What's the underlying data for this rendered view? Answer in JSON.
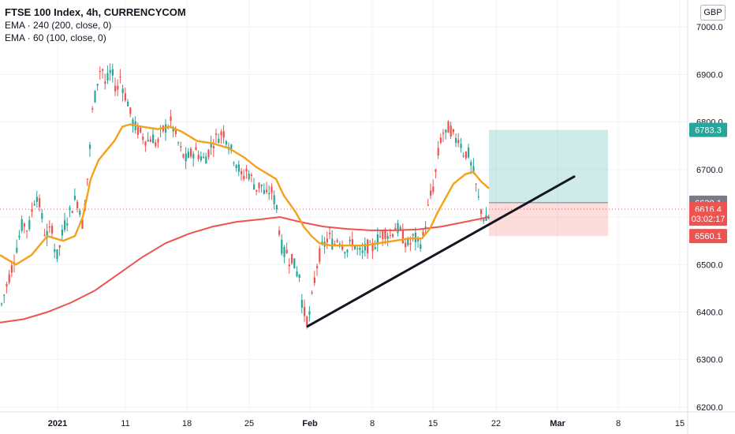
{
  "chart_data": {
    "type": "candlestick",
    "title": "FTSE 100 Index, 4h, CURRENCYCOM",
    "currency": "GBP",
    "indicators": [
      {
        "label": "EMA · 240 (200, close, 0)",
        "color": "#ef5350"
      },
      {
        "label": "EMA · 60 (100, close, 0)",
        "color": "#f5a11a"
      }
    ],
    "x_ticks": [
      "2021",
      "11",
      "18",
      "25",
      "Feb",
      "8",
      "15",
      "22",
      "Mar",
      "8",
      "15"
    ],
    "y_ticks": [
      "7000.0",
      "6900.0",
      "6800.0",
      "6700.0",
      "6600.0",
      "6500.0",
      "6400.0",
      "6300.0",
      "6200.0"
    ],
    "ylim": [
      6190,
      7040
    ],
    "price_path": [
      [
        0,
        6410
      ],
      [
        8,
        6460
      ],
      [
        15,
        6500
      ],
      [
        22,
        6550
      ],
      [
        28,
        6590
      ],
      [
        35,
        6570
      ],
      [
        40,
        6620
      ],
      [
        45,
        6650
      ],
      [
        50,
        6620
      ],
      [
        55,
        6570
      ],
      [
        60,
        6560
      ],
      [
        65,
        6580
      ],
      [
        70,
        6510
      ],
      [
        75,
        6540
      ],
      [
        80,
        6580
      ],
      [
        85,
        6600
      ],
      [
        90,
        6620
      ],
      [
        95,
        6640
      ],
      [
        100,
        6620
      ],
      [
        104,
        6580
      ],
      [
        108,
        6650
      ],
      [
        112,
        6720
      ],
      [
        116,
        6820
      ],
      [
        120,
        6860
      ],
      [
        124,
        6900
      ],
      [
        128,
        6920
      ],
      [
        132,
        6880
      ],
      [
        136,
        6890
      ],
      [
        140,
        6910
      ],
      [
        144,
        6880
      ],
      [
        148,
        6870
      ],
      [
        152,
        6900
      ],
      [
        156,
        6860
      ],
      [
        160,
        6850
      ],
      [
        165,
        6810
      ],
      [
        170,
        6790
      ],
      [
        175,
        6780
      ],
      [
        180,
        6770
      ],
      [
        186,
        6760
      ],
      [
        192,
        6770
      ],
      [
        198,
        6750
      ],
      [
        204,
        6780
      ],
      [
        210,
        6790
      ],
      [
        216,
        6800
      ],
      [
        222,
        6770
      ],
      [
        228,
        6740
      ],
      [
        234,
        6720
      ],
      [
        240,
        6730
      ],
      [
        246,
        6740
      ],
      [
        252,
        6730
      ],
      [
        258,
        6720
      ],
      [
        264,
        6740
      ],
      [
        270,
        6760
      ],
      [
        276,
        6770
      ],
      [
        282,
        6780
      ],
      [
        288,
        6760
      ],
      [
        294,
        6730
      ],
      [
        300,
        6710
      ],
      [
        306,
        6680
      ],
      [
        312,
        6700
      ],
      [
        318,
        6680
      ],
      [
        324,
        6660
      ],
      [
        330,
        6670
      ],
      [
        336,
        6640
      ],
      [
        342,
        6660
      ],
      [
        346,
        6640
      ],
      [
        350,
        6620
      ],
      [
        354,
        6560
      ],
      [
        358,
        6520
      ],
      [
        362,
        6530
      ],
      [
        366,
        6510
      ],
      [
        370,
        6520
      ],
      [
        374,
        6480
      ],
      [
        378,
        6490
      ],
      [
        382,
        6420
      ],
      [
        386,
        6390
      ],
      [
        390,
        6380
      ],
      [
        394,
        6420
      ],
      [
        398,
        6470
      ],
      [
        402,
        6510
      ],
      [
        406,
        6530
      ],
      [
        410,
        6540
      ],
      [
        416,
        6560
      ],
      [
        422,
        6540
      ],
      [
        428,
        6560
      ],
      [
        434,
        6540
      ],
      [
        440,
        6530
      ],
      [
        446,
        6550
      ],
      [
        452,
        6530
      ],
      [
        458,
        6520
      ],
      [
        464,
        6540
      ],
      [
        470,
        6530
      ],
      [
        476,
        6550
      ],
      [
        482,
        6560
      ],
      [
        488,
        6570
      ],
      [
        494,
        6560
      ],
      [
        500,
        6580
      ],
      [
        506,
        6570
      ],
      [
        512,
        6550
      ],
      [
        518,
        6540
      ],
      [
        524,
        6560
      ],
      [
        530,
        6540
      ],
      [
        536,
        6560
      ],
      [
        540,
        6600
      ],
      [
        544,
        6640
      ],
      [
        548,
        6660
      ],
      [
        552,
        6700
      ],
      [
        556,
        6750
      ],
      [
        560,
        6780
      ],
      [
        564,
        6770
      ],
      [
        568,
        6790
      ],
      [
        572,
        6780
      ],
      [
        576,
        6760
      ],
      [
        580,
        6770
      ],
      [
        584,
        6750
      ],
      [
        588,
        6730
      ],
      [
        592,
        6740
      ],
      [
        596,
        6710
      ],
      [
        600,
        6690
      ],
      [
        604,
        6650
      ],
      [
        608,
        6620
      ],
      [
        612,
        6600
      ],
      [
        616,
        6590
      ],
      [
        620,
        6605
      ]
    ],
    "ema_short": [
      [
        0,
        6520
      ],
      [
        20,
        6500
      ],
      [
        40,
        6520
      ],
      [
        60,
        6560
      ],
      [
        80,
        6550
      ],
      [
        95,
        6560
      ],
      [
        105,
        6600
      ],
      [
        115,
        6680
      ],
      [
        125,
        6720
      ],
      [
        135,
        6740
      ],
      [
        145,
        6760
      ],
      [
        155,
        6790
      ],
      [
        165,
        6795
      ],
      [
        180,
        6790
      ],
      [
        200,
        6785
      ],
      [
        215,
        6790
      ],
      [
        230,
        6780
      ],
      [
        250,
        6760
      ],
      [
        270,
        6755
      ],
      [
        290,
        6745
      ],
      [
        310,
        6725
      ],
      [
        325,
        6705
      ],
      [
        340,
        6690
      ],
      [
        350,
        6680
      ],
      [
        360,
        6645
      ],
      [
        375,
        6610
      ],
      [
        385,
        6580
      ],
      [
        395,
        6560
      ],
      [
        405,
        6545
      ],
      [
        420,
        6540
      ],
      [
        440,
        6540
      ],
      [
        460,
        6540
      ],
      [
        480,
        6545
      ],
      [
        500,
        6550
      ],
      [
        520,
        6555
      ],
      [
        535,
        6555
      ],
      [
        545,
        6575
      ],
      [
        555,
        6610
      ],
      [
        565,
        6640
      ],
      [
        575,
        6670
      ],
      [
        590,
        6690
      ],
      [
        600,
        6695
      ],
      [
        610,
        6675
      ],
      [
        620,
        6660
      ]
    ],
    "ema_long": [
      [
        0,
        6378
      ],
      [
        30,
        6385
      ],
      [
        60,
        6400
      ],
      [
        90,
        6420
      ],
      [
        120,
        6445
      ],
      [
        150,
        6480
      ],
      [
        180,
        6515
      ],
      [
        210,
        6545
      ],
      [
        240,
        6565
      ],
      [
        270,
        6580
      ],
      [
        300,
        6590
      ],
      [
        330,
        6595
      ],
      [
        355,
        6600
      ],
      [
        380,
        6590
      ],
      [
        410,
        6580
      ],
      [
        440,
        6575
      ],
      [
        470,
        6572
      ],
      [
        500,
        6572
      ],
      [
        530,
        6574
      ],
      [
        560,
        6580
      ],
      [
        590,
        6590
      ],
      [
        620,
        6600
      ]
    ],
    "trendline": {
      "x1": 390,
      "y1": 6370,
      "x2": 728,
      "y2": 6685
    },
    "position": {
      "entry": 6630.1,
      "target": 6783.3,
      "stop": 6560.1,
      "x1": 620,
      "x2": 771
    },
    "current_price": 6616.4,
    "price_labels": [
      {
        "text": "6783.3",
        "value": 6783.3,
        "color": "#26a69a"
      },
      {
        "text": "6630.1",
        "value": 6630.1,
        "color": "#787b86"
      },
      {
        "text": "6616.4",
        "value": 6616.4,
        "color": "#ef5350"
      },
      {
        "text": "03:02:17",
        "value": 6596.5,
        "color": "#ef5350"
      },
      {
        "text": "6560.1",
        "value": 6560.1,
        "color": "#ef5350"
      }
    ]
  }
}
